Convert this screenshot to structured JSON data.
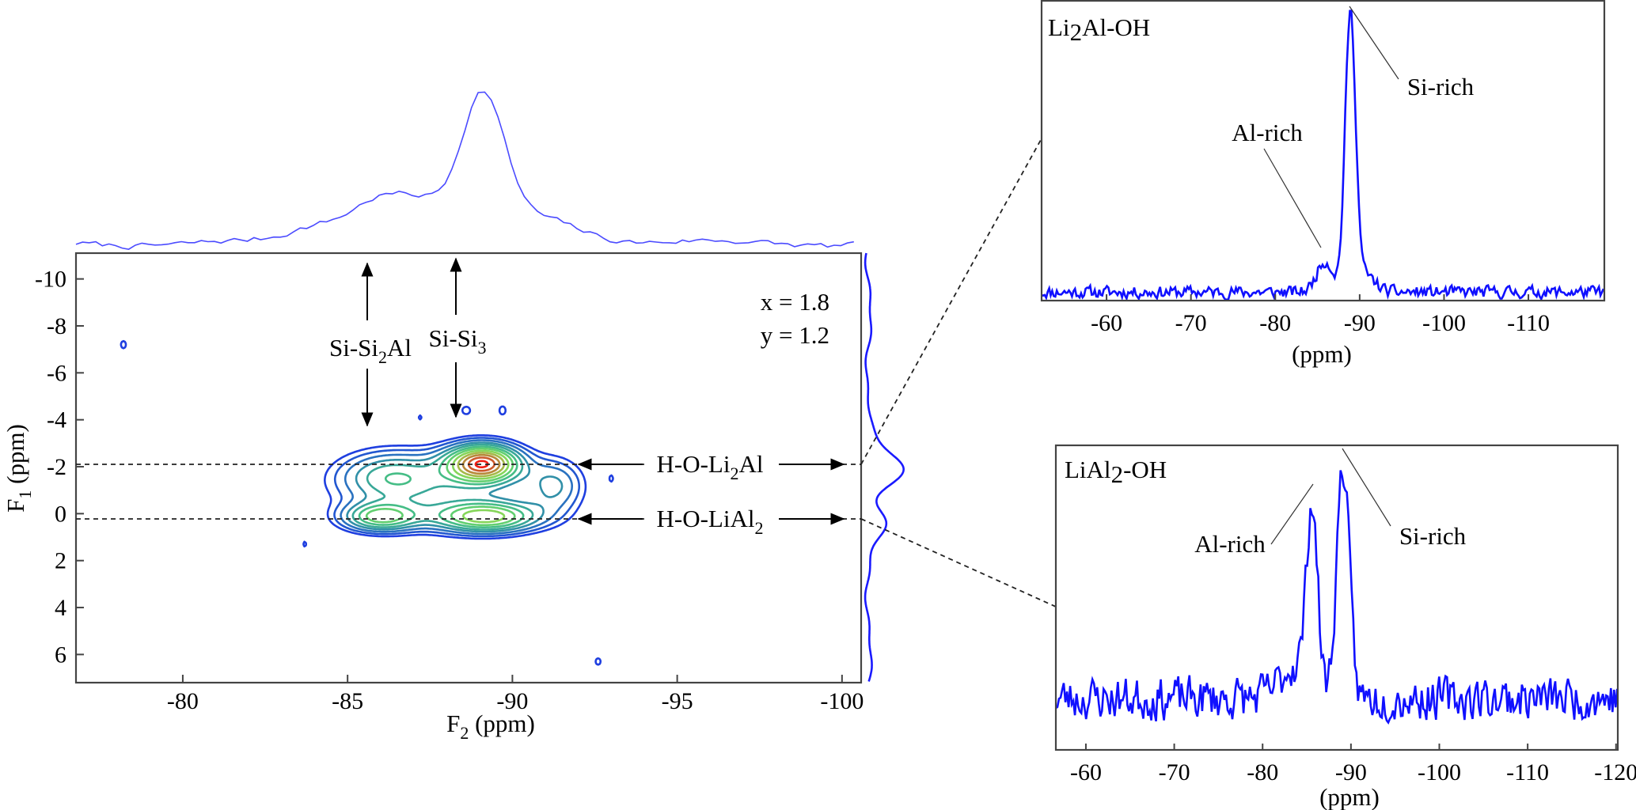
{
  "chart_data": [
    {
      "id": "hetcor-2d",
      "type": "contour",
      "xlabel": {
        "main": "F",
        "sub": "2",
        "rest": " (ppm)"
      },
      "ylabel": {
        "main": "F",
        "sub": "1",
        "rest": " (ppm)"
      },
      "xlim": [
        -76.76,
        -100.58
      ],
      "ylim": [
        -11.1,
        7.2
      ],
      "xticks": [
        -80,
        -85,
        -90,
        -95,
        -100
      ],
      "yticks": [
        -10,
        -8,
        -6,
        -4,
        -2,
        0,
        2,
        4,
        6
      ],
      "parameters": {
        "x_text": "x = 1.8",
        "y_text": "y = 1.2"
      },
      "peaks": [
        {
          "f2": -89.1,
          "f1": -2.15,
          "amp": 0.75,
          "w2": 0.75,
          "w1": 0.55
        },
        {
          "f2": -89.2,
          "f1": 0.15,
          "amp": 0.5,
          "w2": 1.1,
          "w1": 0.45
        },
        {
          "f2": -86.0,
          "f1": 0.15,
          "amp": 0.42,
          "w2": 0.8,
          "w1": 0.42
        },
        {
          "f2": -86.3,
          "f1": -1.6,
          "amp": 0.26,
          "w2": 1.1,
          "w1": 0.75
        },
        {
          "f2": -91.3,
          "f1": -1.2,
          "amp": 0.2,
          "w2": 0.6,
          "w1": 0.8
        },
        {
          "f2": -88.0,
          "f1": -1.0,
          "amp": 0.18,
          "w2": 2.2,
          "w1": 1.1
        },
        {
          "f2": -78.2,
          "f1": -7.2,
          "amp": 0.12,
          "w2": 0.1,
          "w1": 0.2
        },
        {
          "f2": -92.6,
          "f1": 6.3,
          "amp": 0.12,
          "w2": 0.1,
          "w1": 0.18
        },
        {
          "f2": -83.7,
          "f1": 1.3,
          "amp": 0.11,
          "w2": 0.06,
          "w1": 0.15
        },
        {
          "f2": -93.0,
          "f1": -1.5,
          "amp": 0.11,
          "w2": 0.06,
          "w1": 0.15
        },
        {
          "f2": -87.2,
          "f1": -4.1,
          "amp": 0.11,
          "w2": 0.06,
          "w1": 0.12
        },
        {
          "f2": -88.6,
          "f1": -4.4,
          "amp": 0.12,
          "w2": 0.15,
          "w1": 0.2
        },
        {
          "f2": -89.7,
          "f1": -4.4,
          "amp": 0.12,
          "w2": 0.12,
          "w1": 0.22
        }
      ],
      "contour_levels": [
        0.09,
        0.13,
        0.18,
        0.24,
        0.3,
        0.37,
        0.44,
        0.52,
        0.6,
        0.68,
        0.76,
        0.83
      ],
      "contour_colors": [
        "#1f3fe0",
        "#2257d0",
        "#2a72c0",
        "#3190a8",
        "#39a898",
        "#45bd86",
        "#62cf70",
        "#86d65a",
        "#a6b84a",
        "#b7883a",
        "#cc5a2c",
        "#f01e14"
      ],
      "f2_projection": {
        "color": "#4b4bff",
        "ylim": [
          -0.03,
          1.05
        ],
        "noise": 0.035,
        "peaks": [
          {
            "pos": -89.1,
            "amp": 0.95,
            "width": 0.65
          },
          {
            "pos": -85.9,
            "amp": 0.3,
            "width": 0.9
          },
          {
            "pos": -87.4,
            "amp": 0.22,
            "width": 0.8
          },
          {
            "pos": -90.8,
            "amp": 0.18,
            "width": 1.3
          },
          {
            "pos": -84.0,
            "amp": 0.1,
            "width": 0.8
          }
        ]
      },
      "f1_projection": {
        "color": "#1a1aff",
        "xlim": [
          -0.17,
          1.0
        ],
        "peaks": [
          {
            "pos": -1.9,
            "amp": 0.9,
            "width": 0.7
          },
          {
            "pos": 0.35,
            "amp": 0.38,
            "width": 0.6
          }
        ]
      },
      "annotations": {
        "si_si2al": {
          "main": "Si-Si",
          "sub": "2",
          "rest": "Al"
        },
        "si_si3": {
          "main": "Si-Si",
          "sub": "3",
          "rest": ""
        },
        "h_o_li2al": {
          "main": "H-O-Li",
          "sub": "2",
          "rest": "Al",
          "f1": -2.1
        },
        "h_o_lial2": {
          "main": "H-O-LiAl",
          "sub": "2",
          "rest": "",
          "f1": 0.2
        }
      }
    },
    {
      "id": "slice-li2al-oh",
      "type": "line",
      "title": {
        "main": "Li",
        "sub": "2",
        "rest": "Al-OH"
      },
      "xlabel": "(ppm)",
      "xlim": [
        -52.3,
        -119.0
      ],
      "ylim": [
        -0.03,
        1.04
      ],
      "xticks": [
        -60,
        -70,
        -80,
        -90,
        -100,
        -110
      ],
      "color": "#1010ff",
      "noise": 0.03,
      "peaks": [
        {
          "pos": -88.9,
          "amp": 0.98,
          "width": 0.62
        },
        {
          "pos": -85.9,
          "amp": 0.11,
          "width": 1.0
        },
        {
          "pos": -90.6,
          "amp": 0.06,
          "width": 1.2
        }
      ],
      "labels": {
        "al_rich": "Al-rich",
        "si_rich": "Si-rich"
      }
    },
    {
      "id": "slice-lial2-oh",
      "type": "line",
      "title": {
        "main": "LiAl",
        "sub": "2",
        "rest": "-OH"
      },
      "xlabel": "(ppm)",
      "xlim": [
        -56.6,
        -120.2
      ],
      "ylim": [
        -0.21,
        1.03
      ],
      "xticks": [
        -60,
        -70,
        -80,
        -90,
        -100,
        -110,
        -120
      ],
      "color": "#1010ff",
      "noise": 0.12,
      "peaks": [
        {
          "pos": -89.1,
          "amp": 0.95,
          "width": 0.7
        },
        {
          "pos": -85.6,
          "amp": 0.72,
          "width": 0.6
        },
        {
          "pos": -84.0,
          "amp": 0.14,
          "width": 1.8
        }
      ],
      "labels": {
        "al_rich": "Al-rich",
        "si_rich": "Si-rich"
      }
    }
  ]
}
